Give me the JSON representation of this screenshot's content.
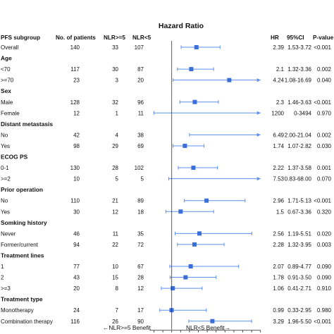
{
  "chart_data": {
    "type": "forest",
    "title": "Hazard Ratio",
    "columns": {
      "subgroup": "PFS subgroup",
      "patients": "No. of patients",
      "nlr_high": "NLR>=5",
      "nlr_low": "NLR<5",
      "hr": "HR",
      "ci": "95%CI",
      "p": "P-value"
    },
    "xlim": [
      -0.25,
      6
    ],
    "ticks": [
      "0",
      "0.5",
      "1",
      "1.5",
      "2",
      "2.5",
      "3",
      "3.5",
      "4",
      "4.5",
      "5",
      "5.5",
      "6"
    ],
    "reference_line": 1,
    "footer": {
      "left": "←NLR>=5 Benefit",
      "right": "NLR<5 Benefit→"
    },
    "colors": {
      "marker": "#3a6fd8",
      "whisker": "#5b8ff0"
    },
    "rows": [
      {
        "type": "item",
        "label": "Overall",
        "n": "140",
        "high": "33",
        "low": "107",
        "hr": "2.39",
        "ci": "1.53-3.72",
        "p": "<0.001",
        "est": 2.39,
        "lo": 1.53,
        "hi": 3.72
      },
      {
        "type": "cat",
        "label": "Age"
      },
      {
        "type": "item",
        "label": "<70",
        "n": "117",
        "high": "30",
        "low": "87",
        "hr": "2.1",
        "ci": "1.32-3.36",
        "p": "0.002",
        "est": 2.1,
        "lo": 1.32,
        "hi": 3.36
      },
      {
        "type": "item",
        "label": ">=70",
        "n": "23",
        "high": "3",
        "low": "20",
        "hr": "4.24",
        "ci": "1.08-16.69",
        "p": "0.040",
        "est": 4.24,
        "lo": 1.08,
        "hi": 16.69
      },
      {
        "type": "cat",
        "label": "Sex"
      },
      {
        "type": "item",
        "label": "Male",
        "n": "128",
        "high": "32",
        "low": "96",
        "hr": "2.3",
        "ci": "1.46-3.63",
        "p": "<0.001",
        "est": 2.3,
        "lo": 1.46,
        "hi": 3.63
      },
      {
        "type": "item",
        "label": "Female",
        "n": "12",
        "high": "1",
        "low": "11",
        "hr": "1200",
        "ci": "0-3494",
        "p": "0.970",
        "est": 1200,
        "lo": 0,
        "hi": 3494
      },
      {
        "type": "cat",
        "label": "Distant metastasis"
      },
      {
        "type": "item",
        "label": "No",
        "n": "42",
        "high": "4",
        "low": "38",
        "hr": "6.49",
        "ci": "2.00-21.04",
        "p": "0.002",
        "est": 6.49,
        "lo": 2.0,
        "hi": 21.04
      },
      {
        "type": "item",
        "label": "Yes",
        "n": "98",
        "high": "29",
        "low": "69",
        "hr": "1.74",
        "ci": "1.07-2.82",
        "p": "0.030",
        "est": 1.74,
        "lo": 1.07,
        "hi": 2.82
      },
      {
        "type": "cat",
        "label": "ECOG PS"
      },
      {
        "type": "item",
        "label": "0-1",
        "n": "130",
        "high": "28",
        "low": "102",
        "hr": "2.22",
        "ci": "1.37-3.58",
        "p": "0.001",
        "est": 2.22,
        "lo": 1.37,
        "hi": 3.58
      },
      {
        "type": "item",
        "label": ">=2",
        "n": "10",
        "high": "5",
        "low": "5",
        "hr": "7.53",
        "ci": "0.83-68.00",
        "p": "0.070",
        "est": 7.53,
        "lo": 0.83,
        "hi": 68.0
      },
      {
        "type": "cat",
        "label": "Prior operation"
      },
      {
        "type": "item",
        "label": "No",
        "n": "110",
        "high": "21",
        "low": "89",
        "hr": "2.96",
        "ci": "1.71-5.13",
        "p": "<0.001",
        "est": 2.96,
        "lo": 1.71,
        "hi": 5.13
      },
      {
        "type": "item",
        "label": "Yes",
        "n": "30",
        "high": "12",
        "low": "18",
        "hr": "1.5",
        "ci": "0.67-3.36",
        "p": "0.320",
        "est": 1.5,
        "lo": 0.67,
        "hi": 3.36
      },
      {
        "type": "cat",
        "label": "Somking history"
      },
      {
        "type": "item",
        "label": "Never",
        "n": "46",
        "high": "11",
        "low": "35",
        "hr": "2.56",
        "ci": "1.19-5.51",
        "p": "0.020",
        "est": 2.56,
        "lo": 1.19,
        "hi": 5.51
      },
      {
        "type": "item",
        "label": "Former/current",
        "n": "94",
        "high": "22",
        "low": "72",
        "hr": "2.28",
        "ci": "1.32-3.95",
        "p": "0.003",
        "est": 2.28,
        "lo": 1.32,
        "hi": 3.95
      },
      {
        "type": "cat",
        "label": "Treatment lines"
      },
      {
        "type": "item",
        "label": "1",
        "n": "77",
        "high": "10",
        "low": "67",
        "hr": "2.07",
        "ci": "0.89-4.77",
        "p": "0.090",
        "est": 2.07,
        "lo": 0.89,
        "hi": 4.77
      },
      {
        "type": "item",
        "label": "2",
        "n": "43",
        "high": "15",
        "low": "28",
        "hr": "1.78",
        "ci": "0.91-3.50",
        "p": "0.090",
        "est": 1.78,
        "lo": 0.91,
        "hi": 3.5
      },
      {
        "type": "item",
        "label": ">=3",
        "n": "20",
        "high": "8",
        "low": "12",
        "hr": "1.06",
        "ci": "0.41-2.71",
        "p": "0.910",
        "est": 1.06,
        "lo": 0.41,
        "hi": 2.71
      },
      {
        "type": "cat",
        "label": "Treatment type"
      },
      {
        "type": "item",
        "label": "Monotherapy",
        "n": "24",
        "high": "7",
        "low": "17",
        "hr": "0.99",
        "ci": "0.33-2.95",
        "p": "0.980",
        "est": 0.99,
        "lo": 0.33,
        "hi": 2.95
      },
      {
        "type": "item",
        "label": "Combination therapy",
        "n": "116",
        "high": "26",
        "low": "90",
        "hr": "3.29",
        "ci": "1.96-5.50",
        "p": "<0.001",
        "est": 3.29,
        "lo": 1.96,
        "hi": 5.5
      }
    ]
  }
}
